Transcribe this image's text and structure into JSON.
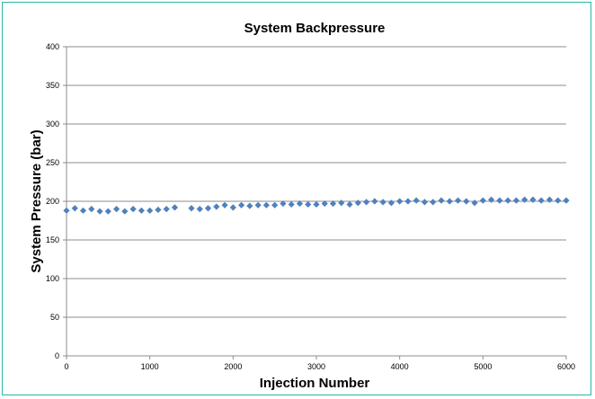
{
  "colors": {
    "border": "#2ab7a5",
    "marker": "#4f81bd",
    "grid": "#8c8c8c"
  },
  "chart_data": {
    "type": "scatter",
    "title": "System Backpressure",
    "xlabel": "Injection Number",
    "ylabel": "System Pressure (bar)",
    "xlim": [
      0,
      6000
    ],
    "ylim": [
      0,
      400
    ],
    "xticks": [
      0,
      1000,
      2000,
      3000,
      4000,
      5000,
      6000
    ],
    "yticks": [
      0,
      50,
      100,
      150,
      200,
      250,
      300,
      350,
      400
    ],
    "grid": "horizontal",
    "legend": "none",
    "series": [
      {
        "x": [
          0,
          100,
          200,
          300,
          400,
          500,
          600,
          700,
          800,
          900,
          1000,
          1100,
          1200,
          1300,
          1500,
          1600,
          1700,
          1800,
          1900,
          2000,
          2100,
          2200,
          2300,
          2400,
          2500,
          2600,
          2700,
          2800,
          2900,
          3000,
          3100,
          3200,
          3300,
          3400,
          3500,
          3600,
          3700,
          3800,
          3900,
          4000,
          4100,
          4200,
          4300,
          4400,
          4500,
          4600,
          4700,
          4800,
          4900,
          5000,
          5100,
          5200,
          5300,
          5400,
          5500,
          5600,
          5700,
          5800,
          5900,
          6000
        ],
        "y": [
          188,
          191,
          188,
          190,
          187,
          187,
          190,
          187,
          190,
          188,
          188,
          189,
          190,
          192,
          191,
          190,
          191,
          193,
          195,
          192,
          195,
          194,
          195,
          195,
          195,
          197,
          196,
          197,
          196,
          196,
          197,
          197,
          198,
          196,
          198,
          199,
          200,
          199,
          198,
          200,
          200,
          201,
          199,
          199,
          201,
          200,
          201,
          200,
          198,
          201,
          202,
          201,
          201,
          201,
          202,
          202,
          201,
          202,
          201,
          201
        ]
      }
    ]
  }
}
